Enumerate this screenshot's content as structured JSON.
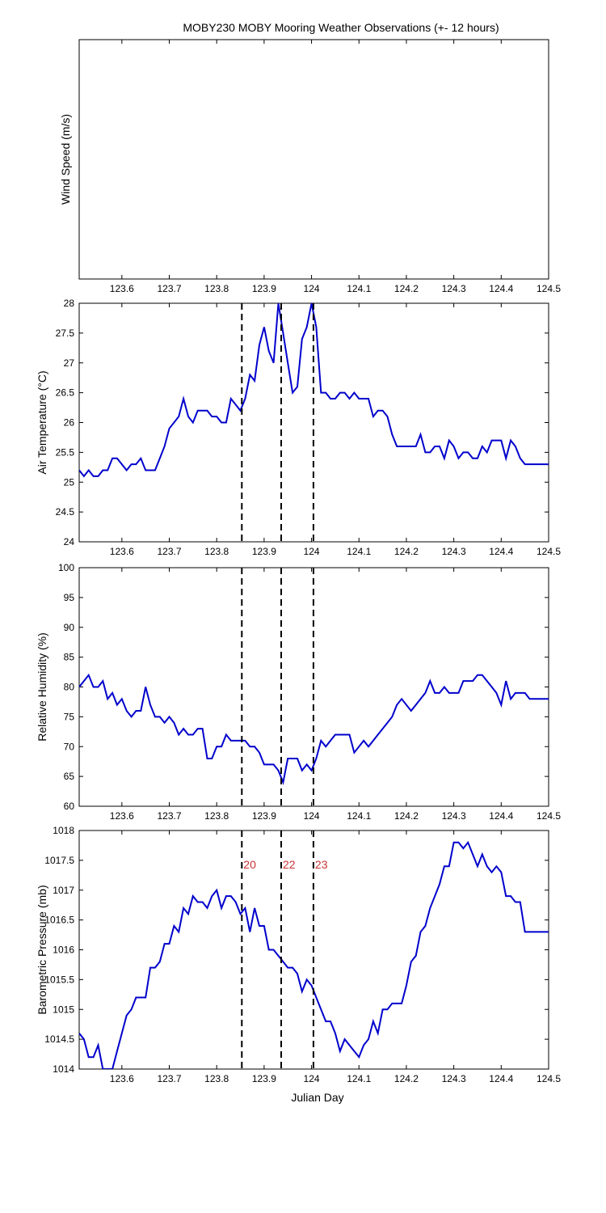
{
  "figure": {
    "title": "MOBY230 MOBY Mooring Weather Observations (+- 12 hours)",
    "xlabel": "Julian Day"
  },
  "colors": {
    "series": "#0000cc",
    "markers": "#000000",
    "marker_labels": "#cc3333",
    "axes": "#000000",
    "background": "#ffffff"
  },
  "chart_data": [
    {
      "type": "line",
      "ylabel": "Wind Speed (m/s)",
      "xlim": [
        123.51,
        124.5
      ],
      "xticks": [
        "123.6",
        "123.7",
        "123.8",
        "123.9",
        "124",
        "124.1",
        "124.2",
        "124.3",
        "124.4",
        "124.5"
      ],
      "yticks": [],
      "series": [],
      "markers": []
    },
    {
      "type": "line",
      "ylabel": "Air Temperature (°C)",
      "xlim": [
        123.51,
        124.5
      ],
      "ylim": [
        24,
        28
      ],
      "xticks": [
        "123.6",
        "123.7",
        "123.8",
        "123.9",
        "124",
        "124.1",
        "124.2",
        "124.3",
        "124.4",
        "124.5"
      ],
      "yticks": [
        "24",
        "24.5",
        "25",
        "25.5",
        "26",
        "26.5",
        "27",
        "27.5",
        "28"
      ],
      "markers": [
        {
          "x": 123.853
        },
        {
          "x": 123.936
        },
        {
          "x": 124.004
        }
      ],
      "series": [
        {
          "x": [
            123.51,
            123.52,
            123.53,
            123.54,
            123.55,
            123.56,
            123.57,
            123.58,
            123.59,
            123.6,
            123.61,
            123.62,
            123.63,
            123.64,
            123.65,
            123.66,
            123.67,
            123.68,
            123.69,
            123.7,
            123.71,
            123.72,
            123.73,
            123.74,
            123.75,
            123.76,
            123.77,
            123.78,
            123.79,
            123.8,
            123.81,
            123.82,
            123.83,
            123.84,
            123.85,
            123.86,
            123.87,
            123.88,
            123.89,
            123.9,
            123.91,
            123.92,
            123.93,
            123.94,
            123.95,
            123.96,
            123.97,
            123.98,
            123.99,
            124.0,
            124.01,
            124.02,
            124.03,
            124.04,
            124.05,
            124.06,
            124.07,
            124.08,
            124.09,
            124.1,
            124.11,
            124.12,
            124.13,
            124.14,
            124.15,
            124.16,
            124.17,
            124.18,
            124.19,
            124.2,
            124.21,
            124.22,
            124.23,
            124.24,
            124.25,
            124.26,
            124.27,
            124.28,
            124.29,
            124.3,
            124.31,
            124.32,
            124.33,
            124.34,
            124.35,
            124.36,
            124.37,
            124.38,
            124.39,
            124.4,
            124.41,
            124.42,
            124.43,
            124.44,
            124.45,
            124.46,
            124.47,
            124.48,
            124.49,
            124.5
          ],
          "y": [
            25.2,
            25.1,
            25.2,
            25.1,
            25.1,
            25.2,
            25.2,
            25.4,
            25.4,
            25.3,
            25.2,
            25.3,
            25.3,
            25.4,
            25.2,
            25.2,
            25.2,
            25.4,
            25.6,
            25.9,
            26.0,
            26.1,
            26.4,
            26.1,
            26.0,
            26.2,
            26.2,
            26.2,
            26.1,
            26.1,
            26.0,
            26.0,
            26.4,
            26.3,
            26.2,
            26.4,
            26.8,
            26.7,
            27.3,
            27.6,
            27.2,
            27.0,
            28.0,
            27.5,
            27.0,
            26.5,
            26.6,
            27.4,
            27.6,
            28.0,
            27.6,
            26.5,
            26.5,
            26.4,
            26.4,
            26.5,
            26.5,
            26.4,
            26.5,
            26.4,
            26.4,
            26.4,
            26.1,
            26.2,
            26.2,
            26.1,
            25.8,
            25.6,
            25.6,
            25.6,
            25.6,
            25.6,
            25.8,
            25.5,
            25.5,
            25.6,
            25.6,
            25.4,
            25.7,
            25.6,
            25.4,
            25.5,
            25.5,
            25.4,
            25.4,
            25.6,
            25.5,
            25.7,
            25.7,
            25.7,
            25.4,
            25.7,
            25.6,
            25.4,
            25.3,
            25.3,
            25.3,
            25.3,
            25.3,
            25.3
          ]
        }
      ]
    },
    {
      "type": "line",
      "ylabel": "Relative Humidity (%)",
      "xlim": [
        123.51,
        124.5
      ],
      "ylim": [
        60,
        100
      ],
      "xticks": [
        "123.6",
        "123.7",
        "123.8",
        "123.9",
        "124",
        "124.1",
        "124.2",
        "124.3",
        "124.4",
        "124.5"
      ],
      "yticks": [
        "60",
        "65",
        "70",
        "75",
        "80",
        "85",
        "90",
        "95",
        "100"
      ],
      "markers": [
        {
          "x": 123.853
        },
        {
          "x": 123.936
        },
        {
          "x": 124.004
        }
      ],
      "series": [
        {
          "x": [
            123.51,
            123.52,
            123.53,
            123.54,
            123.55,
            123.56,
            123.57,
            123.58,
            123.59,
            123.6,
            123.61,
            123.62,
            123.63,
            123.64,
            123.65,
            123.66,
            123.67,
            123.68,
            123.69,
            123.7,
            123.71,
            123.72,
            123.73,
            123.74,
            123.75,
            123.76,
            123.77,
            123.78,
            123.79,
            123.8,
            123.81,
            123.82,
            123.83,
            123.84,
            123.85,
            123.86,
            123.87,
            123.88,
            123.89,
            123.9,
            123.91,
            123.92,
            123.93,
            123.94,
            123.95,
            123.96,
            123.97,
            123.98,
            123.99,
            124.0,
            124.01,
            124.02,
            124.03,
            124.04,
            124.05,
            124.06,
            124.07,
            124.08,
            124.09,
            124.1,
            124.11,
            124.12,
            124.13,
            124.14,
            124.15,
            124.16,
            124.17,
            124.18,
            124.19,
            124.2,
            124.21,
            124.22,
            124.23,
            124.24,
            124.25,
            124.26,
            124.27,
            124.28,
            124.29,
            124.3,
            124.31,
            124.32,
            124.33,
            124.34,
            124.35,
            124.36,
            124.37,
            124.38,
            124.39,
            124.4,
            124.41,
            124.42,
            124.43,
            124.44,
            124.45,
            124.46,
            124.47,
            124.48,
            124.49,
            124.5
          ],
          "y": [
            80,
            81,
            82,
            80,
            80,
            81,
            78,
            79,
            77,
            78,
            76,
            75,
            76,
            76,
            80,
            77,
            75,
            75,
            74,
            75,
            74,
            72,
            73,
            72,
            72,
            73,
            73,
            68,
            68,
            70,
            70,
            72,
            71,
            71,
            71,
            71,
            70,
            70,
            69,
            67,
            67,
            67,
            66,
            64,
            68,
            68,
            68,
            66,
            67,
            66,
            68,
            71,
            70,
            71,
            72,
            72,
            72,
            72,
            69,
            70,
            71,
            70,
            71,
            72,
            73,
            74,
            75,
            77,
            78,
            77,
            76,
            77,
            78,
            79,
            81,
            79,
            79,
            80,
            79,
            79,
            79,
            81,
            81,
            81,
            82,
            82,
            81,
            80,
            79,
            77,
            81,
            78,
            79,
            79,
            79,
            78,
            78,
            78,
            78,
            78
          ]
        }
      ]
    },
    {
      "type": "line",
      "ylabel": "Barometric Pressure (mb)",
      "xlim": [
        123.51,
        124.5
      ],
      "ylim": [
        1014,
        1018
      ],
      "xticks": [
        "123.6",
        "123.7",
        "123.8",
        "123.9",
        "124",
        "124.1",
        "124.2",
        "124.3",
        "124.4",
        "124.5"
      ],
      "yticks": [
        "1014",
        "1014.5",
        "1015",
        "1015.5",
        "1016",
        "1016.5",
        "1017",
        "1017.5",
        "1018"
      ],
      "markers": [
        {
          "x": 123.853,
          "label": "20"
        },
        {
          "x": 123.936,
          "label": "22"
        },
        {
          "x": 124.004,
          "label": "23"
        }
      ],
      "series": [
        {
          "x": [
            123.51,
            123.52,
            123.53,
            123.54,
            123.55,
            123.56,
            123.57,
            123.58,
            123.59,
            123.6,
            123.61,
            123.62,
            123.63,
            123.64,
            123.65,
            123.66,
            123.67,
            123.68,
            123.69,
            123.7,
            123.71,
            123.72,
            123.73,
            123.74,
            123.75,
            123.76,
            123.77,
            123.78,
            123.79,
            123.8,
            123.81,
            123.82,
            123.83,
            123.84,
            123.85,
            123.86,
            123.87,
            123.88,
            123.89,
            123.9,
            123.91,
            123.92,
            123.93,
            123.94,
            123.95,
            123.96,
            123.97,
            123.98,
            123.99,
            124.0,
            124.01,
            124.02,
            124.03,
            124.04,
            124.05,
            124.06,
            124.07,
            124.08,
            124.09,
            124.1,
            124.11,
            124.12,
            124.13,
            124.14,
            124.15,
            124.16,
            124.17,
            124.18,
            124.19,
            124.2,
            124.21,
            124.22,
            124.23,
            124.24,
            124.25,
            124.26,
            124.27,
            124.28,
            124.29,
            124.3,
            124.31,
            124.32,
            124.33,
            124.34,
            124.35,
            124.36,
            124.37,
            124.38,
            124.39,
            124.4,
            124.41,
            124.42,
            124.43,
            124.44,
            124.45,
            124.46,
            124.47,
            124.48,
            124.49,
            124.5
          ],
          "y": [
            1014.6,
            1014.5,
            1014.2,
            1014.2,
            1014.4,
            1014.0,
            1014.0,
            1014.0,
            1014.3,
            1014.6,
            1014.9,
            1015.0,
            1015.2,
            1015.2,
            1015.2,
            1015.7,
            1015.7,
            1015.8,
            1016.1,
            1016.1,
            1016.4,
            1016.3,
            1016.7,
            1016.6,
            1016.9,
            1016.8,
            1016.8,
            1016.7,
            1016.9,
            1017.0,
            1016.7,
            1016.9,
            1016.9,
            1016.8,
            1016.6,
            1016.7,
            1016.3,
            1016.7,
            1016.4,
            1016.4,
            1016.0,
            1016.0,
            1015.9,
            1015.8,
            1015.7,
            1015.7,
            1015.6,
            1015.3,
            1015.5,
            1015.4,
            1015.2,
            1015.0,
            1014.8,
            1014.8,
            1014.6,
            1014.3,
            1014.5,
            1014.4,
            1014.3,
            1014.2,
            1014.4,
            1014.5,
            1014.8,
            1014.6,
            1015.0,
            1015.0,
            1015.1,
            1015.1,
            1015.1,
            1015.4,
            1015.8,
            1015.9,
            1016.3,
            1016.4,
            1016.7,
            1016.9,
            1017.1,
            1017.4,
            1017.4,
            1017.8,
            1017.8,
            1017.7,
            1017.8,
            1017.6,
            1017.4,
            1017.6,
            1017.4,
            1017.3,
            1017.4,
            1017.3,
            1016.9,
            1016.9,
            1016.8,
            1016.8,
            1016.3,
            1016.3,
            1016.3,
            1016.3,
            1016.3,
            1016.3
          ]
        }
      ]
    }
  ]
}
